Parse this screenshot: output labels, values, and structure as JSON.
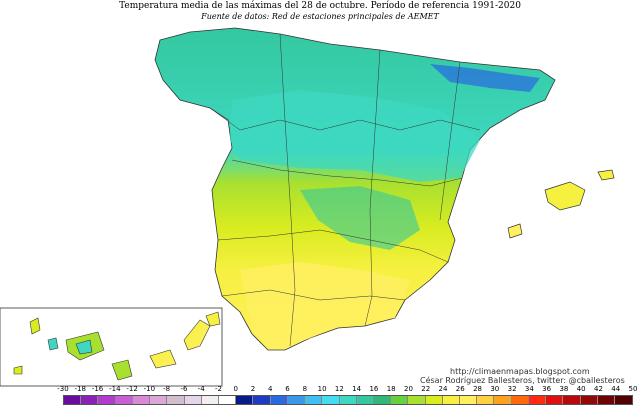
{
  "title": "Temperatura media de las máximas del 28 de octubre. Período de referencia 1991-2020",
  "subtitle": "Fuente de datos: Red de estaciones principales de AEMET",
  "credits": {
    "url": "http://climaenmapas.blogspot.com",
    "author": "César Rodríguez Ballesteros, twitter: @cballesteros"
  },
  "legend": {
    "ticks": [
      "-30",
      "-18",
      "-16",
      "-14",
      "-12",
      "-10",
      "-8",
      "-6",
      "-4",
      "-2",
      "0",
      "2",
      "4",
      "6",
      "8",
      "10",
      "12",
      "14",
      "16",
      "18",
      "20",
      "22",
      "24",
      "26",
      "28",
      "30",
      "32",
      "34",
      "36",
      "38",
      "40",
      "42",
      "44",
      "50"
    ],
    "colors": [
      "#6a0d9e",
      "#8a22b8",
      "#b03ccc",
      "#c85fd6",
      "#d88ad6",
      "#dba7d4",
      "#d4bccf",
      "#e4d6e8",
      "#f2eef4",
      "#ffffff",
      "#0a1a8a",
      "#1c3cc4",
      "#2a6ae0",
      "#3a98e8",
      "#40c0f0",
      "#44dcf0",
      "#3ed8c0",
      "#34c8a0",
      "#30b878",
      "#66d040",
      "#a8e030",
      "#d8ec20",
      "#f6f040",
      "#fff060",
      "#ffd040",
      "#ffa020",
      "#ff6a10",
      "#ff2a10",
      "#e01010",
      "#b80808",
      "#900808",
      "#700404",
      "#500202"
    ]
  },
  "map_colors": {
    "north_teal": "#3ed8c0",
    "north_dark": "#34c8a0",
    "center_green": "#a8e030",
    "south_yellow": "#f6f040",
    "warm_yellow": "#fff060",
    "pyrenees": "#2a6ae0",
    "border": "#333333"
  }
}
